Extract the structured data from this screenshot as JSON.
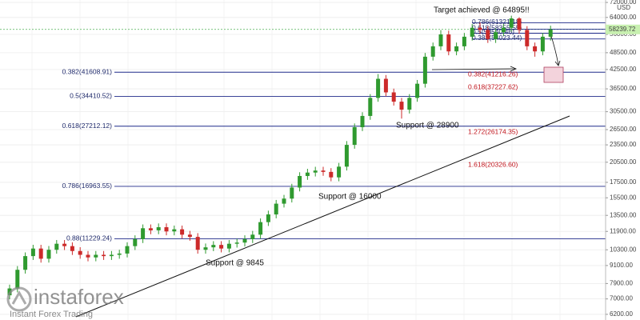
{
  "chart_data": {
    "type": "candlestick",
    "log_scale": true,
    "grid": true,
    "currency": "USD",
    "up_color": "#2f9a2f",
    "down_color": "#cc2a2a",
    "ylim": [
      5930,
      73400
    ],
    "yticks": [
      {
        "value": 72000,
        "label": "72000.00"
      },
      {
        "value": 64000,
        "label": "64000.00"
      },
      {
        "value": 56000,
        "label": "56000.00"
      },
      {
        "value": 48500,
        "label": "48500.00"
      },
      {
        "value": 42500,
        "label": "42500.00"
      },
      {
        "value": 36500,
        "label": "36500.00"
      },
      {
        "value": 30500,
        "label": "30500.00"
      },
      {
        "value": 26500,
        "label": "26500.00"
      },
      {
        "value": 23500,
        "label": "23500.00"
      },
      {
        "value": 20500,
        "label": "20500.00"
      },
      {
        "value": 17500,
        "label": "17500.00"
      },
      {
        "value": 15500,
        "label": "15500.00"
      },
      {
        "value": 13500,
        "label": "13500.00"
      },
      {
        "value": 11900,
        "label": "11900.00"
      },
      {
        "value": 10300,
        "label": "10300.00"
      },
      {
        "value": 9100,
        "label": "9100.00"
      },
      {
        "value": 7900,
        "label": "7900.00"
      },
      {
        "value": 7000,
        "label": "7000.00"
      },
      {
        "value": 6200,
        "label": "6200.00"
      }
    ],
    "open": [
      7200,
      7600,
      8800,
      9800,
      10400,
      9600,
      10300,
      10800,
      10600,
      10200,
      9900,
      9700,
      9900,
      9800,
      9900,
      10000,
      10600,
      11200,
      12200,
      12000,
      12300,
      11900,
      12100,
      11600,
      11400,
      10300,
      10500,
      10700,
      10400,
      10800,
      10900,
      11200,
      11600,
      12800,
      13600,
      14800,
      15400,
      16800,
      18400,
      18900,
      19200,
      19000,
      18200,
      19800,
      23500,
      27000,
      29500,
      34000,
      39500,
      35500,
      33000,
      31000,
      34000,
      38000,
      47000,
      51000,
      56000,
      49000,
      51000,
      55000,
      59000,
      58000,
      54000,
      57000,
      59000,
      63500,
      58000,
      51000,
      49000,
      55000
    ],
    "high": [
      7830,
      9060,
      10090,
      10710,
      10710,
      10610,
      11120,
      11120,
      10920,
      10510,
      10200,
      10200,
      10200,
      10200,
      10300,
      10920,
      11540,
      12570,
      12570,
      12670,
      12670,
      12460,
      12460,
      11950,
      11740,
      10820,
      11020,
      11020,
      11120,
      11230,
      11540,
      11950,
      13180,
      14010,
      15240,
      15860,
      17300,
      18950,
      19470,
      19780,
      19780,
      19570,
      20390,
      24210,
      27810,
      30390,
      35020,
      41000,
      40690,
      36570,
      33990,
      35020,
      39140,
      48410,
      52530,
      57950,
      57680,
      52530,
      56650,
      60770,
      61500,
      59740,
      58710,
      60770,
      64895,
      64100,
      59740,
      52530,
      56650,
      59990
    ],
    "low": [
      6980,
      7370,
      8540,
      9510,
      9310,
      9310,
      9990,
      10280,
      9890,
      9600,
      9410,
      9410,
      9510,
      9510,
      9600,
      9700,
      10280,
      10860,
      11640,
      11640,
      11540,
      11540,
      11250,
      11060,
      9990,
      9990,
      10190,
      10090,
      10090,
      10480,
      10570,
      10860,
      11250,
      12420,
      13190,
      14360,
      14940,
      16300,
      17850,
      18330,
      18430,
      17650,
      17650,
      19210,
      22800,
      26190,
      28620,
      32980,
      34440,
      32010,
      28900,
      30070,
      32980,
      36860,
      45590,
      49470,
      47530,
      47530,
      49470,
      53350,
      56260,
      52380,
      52380,
      55290,
      57230,
      56260,
      49470,
      47000,
      47530,
      53350
    ],
    "close": [
      7600,
      8800,
      9800,
      10400,
      9600,
      10300,
      10800,
      10600,
      10200,
      9900,
      9700,
      9900,
      9800,
      9900,
      10000,
      10600,
      11200,
      12200,
      12000,
      12300,
      11900,
      12100,
      11600,
      11400,
      10300,
      10500,
      10700,
      10400,
      10800,
      10900,
      11200,
      11600,
      12800,
      13600,
      14800,
      15400,
      16800,
      18400,
      18900,
      19200,
      19000,
      18200,
      19800,
      23500,
      27000,
      29500,
      34000,
      39500,
      35500,
      33000,
      31000,
      34000,
      38000,
      47000,
      51000,
      56000,
      49000,
      51000,
      55000,
      59000,
      58000,
      54000,
      57000,
      59000,
      63500,
      58000,
      51000,
      49000,
      55000,
      58239.72
    ],
    "last_price": 58239.72,
    "fib_levels": [
      {
        "label": "0.382(41608.91)",
        "value": 41608.91,
        "color": "#1f2a8a"
      },
      {
        "label": "0.5(34410.52)",
        "value": 34410.52,
        "color": "#1f2a8a"
      },
      {
        "label": "0.618(27212.12)",
        "value": 27212.12,
        "color": "#1f2a8a"
      },
      {
        "label": "0.786(16963.55)",
        "value": 16963.55,
        "color": "#1f2a8a"
      },
      {
        "label": "0.88(11229.24)",
        "value": 11229.24,
        "color": "#1f2a8a"
      }
    ],
    "upper_fib_levels": [
      {
        "label": "0.786(61321.18)",
        "value": 61321.18,
        "color": "#1f2a8a"
      },
      {
        "label": "0.618(58355.55)",
        "value": 58355.55,
        "color": "#1f2a8a"
      },
      {
        "label": "0.5(56540.46)",
        "value": 56540.46,
        "color": "#1f2a8a"
      },
      {
        "label": "0.382(54023.44)",
        "value": 54023.44,
        "color": "#1f2a8a"
      }
    ],
    "projections": [
      "0.382(41216.26)",
      "0.618(37227.62)",
      "1.272(26174.35)",
      "1.618(20326.60)"
    ],
    "annotations": [
      "Target achieved @ 64895!!",
      "Support @ 28900",
      "Support @ 16000",
      "Support @ 9845"
    ],
    "watermark": {
      "brand": "instaforex",
      "tagline": "Instant Forex Trading"
    }
  }
}
